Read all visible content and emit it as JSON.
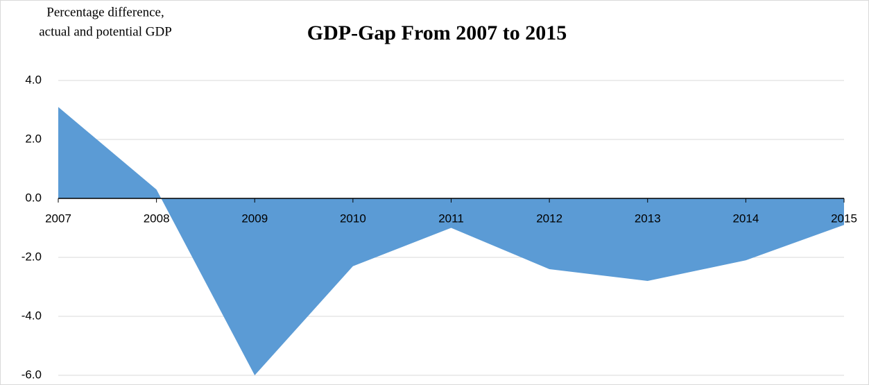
{
  "chart_data": {
    "type": "area",
    "title": "GDP-Gap From 2007 to 2015",
    "ylabel": [
      "Percentage difference,",
      "actual and potential GDP"
    ],
    "categories": [
      "2007",
      "2008",
      "2009",
      "2010",
      "2011",
      "2012",
      "2013",
      "2014",
      "2015"
    ],
    "values": [
      3.1,
      0.3,
      -6.0,
      -2.3,
      -1.0,
      -2.4,
      -2.8,
      -2.1,
      -0.9
    ],
    "color": "#5b9bd5",
    "ylim": [
      -6,
      4
    ],
    "yticks": [
      {
        "value": 4,
        "label": "4.0"
      },
      {
        "value": 2,
        "label": "2.0"
      },
      {
        "value": 0,
        "label": "0.0"
      },
      {
        "value": -2,
        "label": "-2.0"
      },
      {
        "value": -4,
        "label": "-4.0"
      },
      {
        "value": -6,
        "label": "-6.0"
      }
    ],
    "grid": true
  }
}
